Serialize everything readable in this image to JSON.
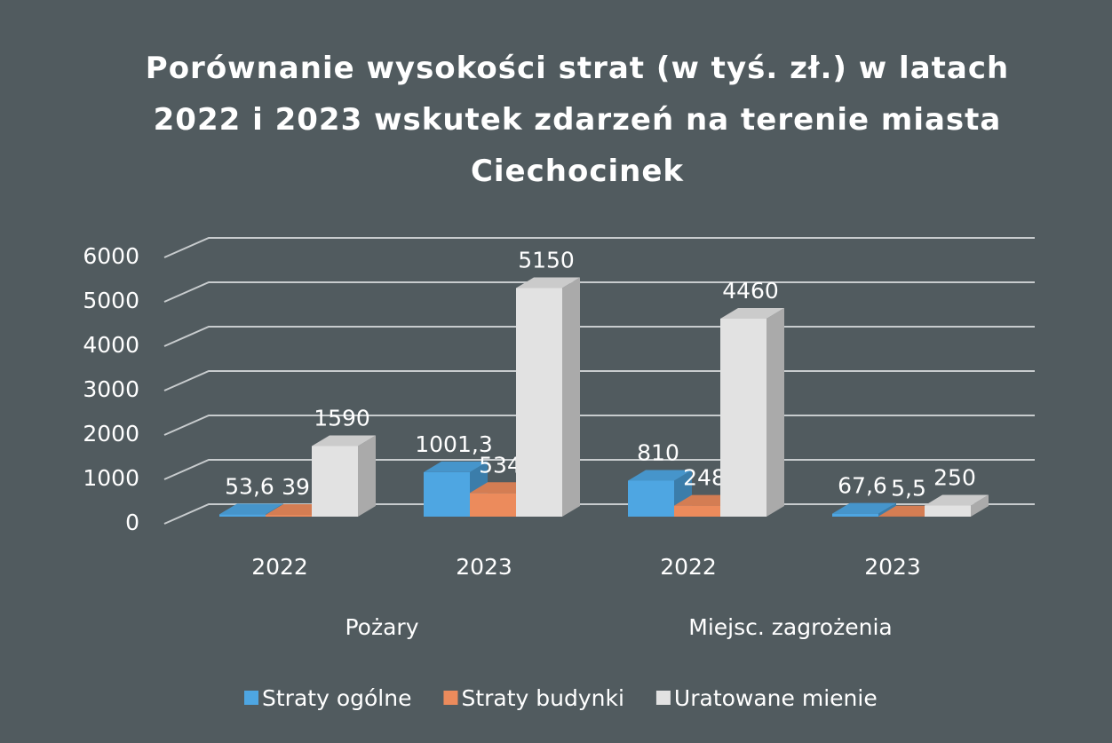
{
  "chart_data": {
    "type": "bar3d",
    "title": "Porównanie wysokości strat (w tyś. zł.) w latach 2022 i 2023 wskutek zdarzeń na terenie miasta Ciechocinek",
    "categories": [
      "2022",
      "2023",
      "2022",
      "2023"
    ],
    "groups": [
      "Pożary",
      "Miejsc. zagrożenia"
    ],
    "series": [
      {
        "name": "Straty ogólne",
        "color": "#4ea6e2",
        "values": [
          53.6,
          1001.3,
          810,
          67.6
        ],
        "value_labels": [
          "53,6",
          "1001,3",
          "810",
          "67,6"
        ]
      },
      {
        "name": "Straty budynki",
        "color": "#ec8b5c",
        "values": [
          39,
          534,
          248,
          5.5
        ],
        "value_labels": [
          "39",
          "534",
          "248",
          "5,5"
        ]
      },
      {
        "name": "Uratowane mienie",
        "color": "#e2e2e2",
        "values": [
          1590,
          5150,
          4460,
          250
        ]
      }
    ],
    "ylim": [
      0,
      6000
    ],
    "yticks": [
      0,
      1000,
      2000,
      3000,
      4000,
      5000,
      6000
    ],
    "grid": true,
    "legend": "bottom"
  }
}
